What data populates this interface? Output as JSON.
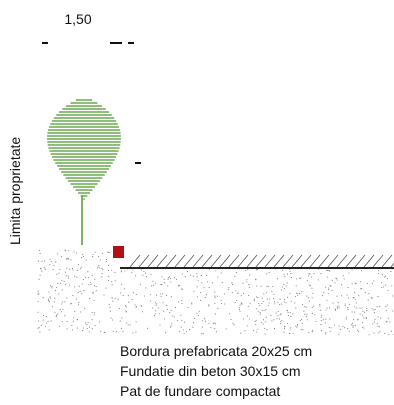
{
  "dimension": "1,50",
  "property_label": "Limita proprietate",
  "legend": [
    "Bordura prefabricata 20x25 cm",
    "Fundatie din beton 30x15 cm",
    "Pat de fundare compactat"
  ]
}
